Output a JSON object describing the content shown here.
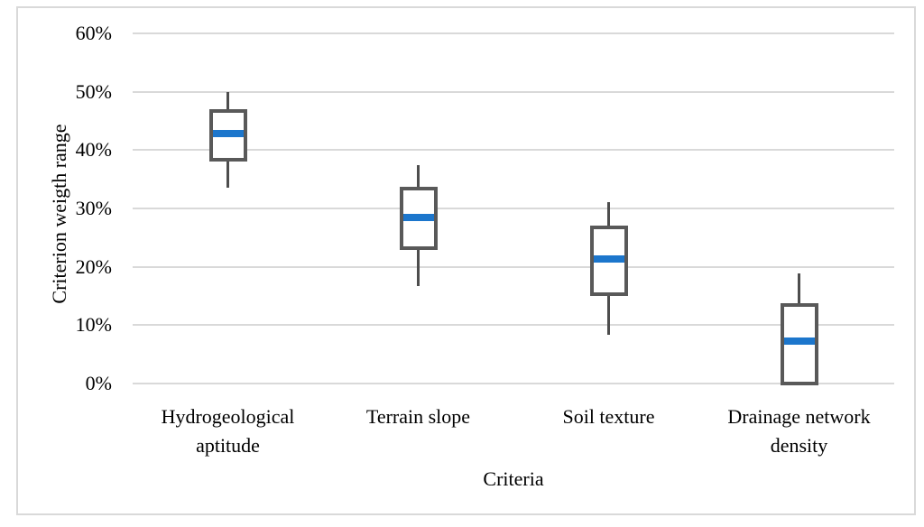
{
  "chart_data": {
    "type": "boxplot",
    "title": "",
    "xlabel": "Criteria",
    "ylabel": "Criterion weigth range",
    "ylim": [
      0,
      60
    ],
    "ytick_step": 10,
    "ytick_labels": [
      "0%",
      "10%",
      "20%",
      "30%",
      "40%",
      "50%",
      "60%"
    ],
    "grid": "horizontal",
    "legend_position": "none",
    "categories": [
      "Hydrogeological aptitude",
      "Terrain slope",
      "Soil texture",
      "Drainage network density"
    ],
    "series": [
      {
        "name": "Hydrogeological aptitude",
        "whisker_low": 33.5,
        "q1": 38.3,
        "median": 42.8,
        "q3": 46.7,
        "whisker_high": 50.0
      },
      {
        "name": "Terrain slope",
        "whisker_low": 16.7,
        "q1": 23.2,
        "median": 28.5,
        "q3": 33.4,
        "whisker_high": 37.5
      },
      {
        "name": "Soil texture",
        "whisker_low": 8.4,
        "q1": 15.3,
        "median": 21.4,
        "q3": 26.7,
        "whisker_high": 31.1
      },
      {
        "name": "Drainage network density",
        "whisker_low": 0.0,
        "q1": 0.0,
        "median": 7.2,
        "q3": 13.4,
        "whisker_high": 18.8
      }
    ],
    "colors": {
      "median": "#1c76cc",
      "box_border": "#595959",
      "whisker": "#4d4d4d",
      "gridline": "#d9d9d9",
      "frame_border": "#d9d9d9",
      "text": "#000000"
    }
  }
}
